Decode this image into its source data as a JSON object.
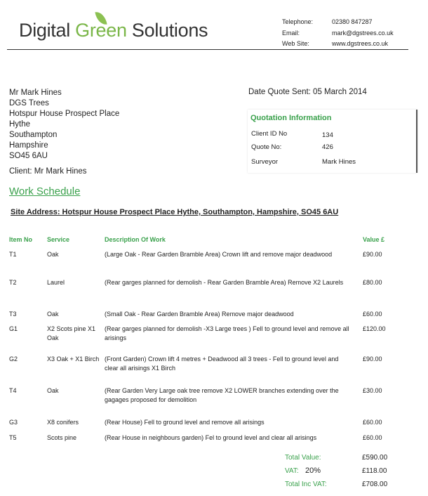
{
  "company": {
    "name_part1": "Digital ",
    "name_part2": "Green",
    "name_part3": " Solutions",
    "brand_color": "#7ab648"
  },
  "contact": [
    {
      "label": "Telephone:",
      "value": "02380 847287"
    },
    {
      "label": "Email:",
      "value": "mark@dgstrees.co.uk"
    },
    {
      "label": "Web Site:",
      "value": "www.dgstrees.co.uk"
    }
  ],
  "address": [
    "Mr Mark Hines",
    "DGS Trees",
    "Hotspur House Prospect Place",
    "Hythe",
    "Southampton",
    "Hampshire",
    "SO45 6AU"
  ],
  "client_line": "Client: Mr Mark Hines",
  "date_sent": "Date Quote Sent:  05 March 2014",
  "quotation": {
    "title": "Quotation Information",
    "rows": [
      {
        "label": "Client ID No",
        "value": "134"
      },
      {
        "label": "Quote No:",
        "value": "426"
      },
      {
        "label": "Surveyor",
        "value": "Mark Hines"
      }
    ]
  },
  "work_schedule_title": "Work Schedule",
  "site_address": "Site Address:  Hotspur House Prospect Place Hythe, Southampton, Hampshire, SO45 6AU",
  "table": {
    "headers": [
      "Item No",
      "Service",
      "Description Of Work",
      "Value £"
    ],
    "rows": [
      {
        "item": "T1",
        "service": "Oak",
        "desc": "(Large Oak - Rear Garden Bramble Area) Crown  lift and remove major deadwood",
        "value": "£90.00"
      },
      {
        "item": "T2",
        "service": "Laurel",
        "desc": "(Rear garges planned for demolish - Rear Garden Bramble Area) Remove X2 Laurels",
        "value": "£80.00"
      },
      {
        "item": "T3",
        "service": "Oak",
        "desc": "(Small  Oak - Rear Garden Bramble Area) Remove major deadwood",
        "value": "£60.00"
      },
      {
        "item": "G1",
        "service": "X2 Scots pine X1 Oak",
        "desc": "(Rear garges planned for demolish -X3 Large trees ) Fell to ground level and remove all arisings",
        "value": "£120.00"
      },
      {
        "item": "G2",
        "service": "X3 Oak + X1 Birch",
        "desc": "(Front Garden) Crown lift 4 metres + Deadwood all 3 trees - Fell to ground level and clear all arisings X1 Birch",
        "value": "£90.00"
      },
      {
        "item": "T4",
        "service": "Oak",
        "desc": "(Rear Garden Very Large oak tree remove X2 LOWER branches extending over the gagages proposed for demolition",
        "value": "£30.00"
      },
      {
        "item": "G3",
        "service": "X8 conifers",
        "desc": "(Rear House) Fell to ground  level and remove all arisings",
        "value": "£60.00"
      },
      {
        "item": "T5",
        "service": "Scots pine",
        "desc": "(Rear House in neighbours garden) Fel to ground level and clear all arisings",
        "value": "£60.00"
      }
    ]
  },
  "totals": {
    "total_label": "Total Value:",
    "total_value": "£590.00",
    "vat_label": "VAT:",
    "vat_rate": "20%",
    "vat_value": "£118.00",
    "inc_label": "Total Inc VAT:",
    "inc_value": "£708.00"
  }
}
